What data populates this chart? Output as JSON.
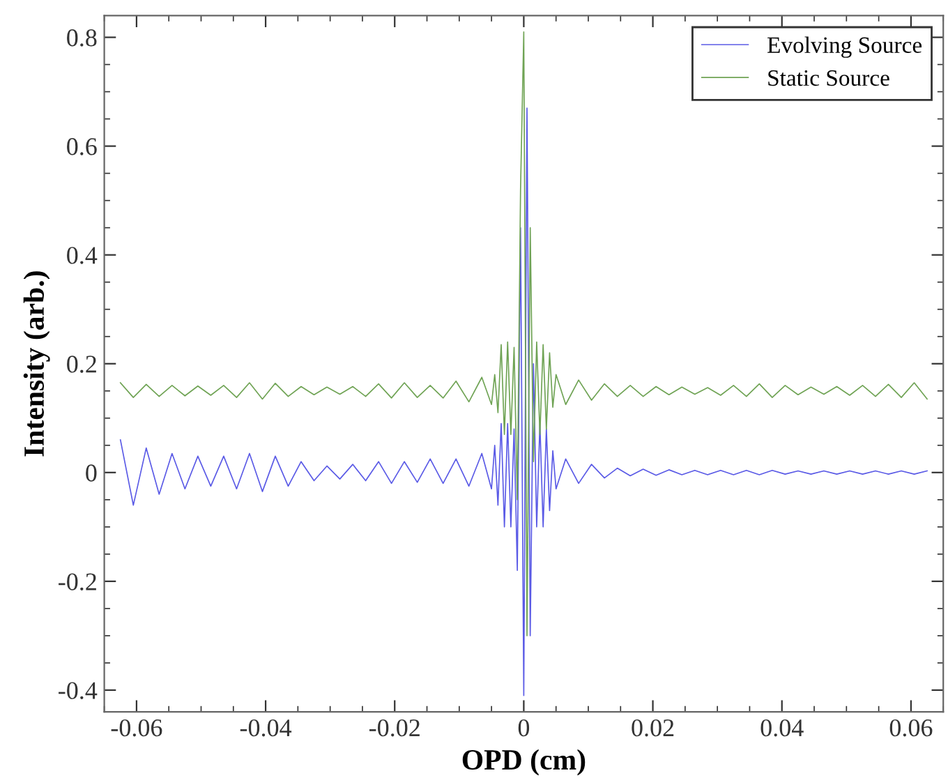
{
  "chart_data": {
    "type": "line",
    "xlabel": "OPD (cm)",
    "ylabel": "Intensity (arb.)",
    "xlim": [
      -0.065,
      0.065
    ],
    "ylim": [
      -0.44,
      0.84
    ],
    "xticks": [
      -0.06,
      -0.04,
      -0.02,
      0,
      0.02,
      0.04,
      0.06
    ],
    "yticks": [
      -0.4,
      -0.2,
      0,
      0.2,
      0.4,
      0.6,
      0.8
    ],
    "legend": "top right",
    "grid": false,
    "x": [
      -0.0625,
      -0.0605,
      -0.0585,
      -0.0565,
      -0.0545,
      -0.0525,
      -0.0505,
      -0.0485,
      -0.0465,
      -0.0445,
      -0.0425,
      -0.0405,
      -0.0385,
      -0.0365,
      -0.0345,
      -0.0325,
      -0.0305,
      -0.0285,
      -0.0265,
      -0.0245,
      -0.0225,
      -0.0205,
      -0.0185,
      -0.0165,
      -0.0145,
      -0.0125,
      -0.0105,
      -0.0085,
      -0.0065,
      -0.005,
      -0.0045,
      -0.004,
      -0.0035,
      -0.003,
      -0.0025,
      -0.002,
      -0.0015,
      -0.001,
      -0.0005,
      0,
      0.0005,
      0.001,
      0.0015,
      0.002,
      0.0025,
      0.003,
      0.0035,
      0.004,
      0.0045,
      0.005,
      0.0065,
      0.0085,
      0.0105,
      0.0125,
      0.0145,
      0.0165,
      0.0185,
      0.0205,
      0.0225,
      0.0245,
      0.0265,
      0.0285,
      0.0305,
      0.0325,
      0.0345,
      0.0365,
      0.0385,
      0.0405,
      0.0425,
      0.0445,
      0.0465,
      0.0485,
      0.0505,
      0.0525,
      0.0545,
      0.0565,
      0.0585,
      0.0605,
      0.0625
    ],
    "series": [
      {
        "name": "Evolving Source",
        "color": "#5a5ae6",
        "values": [
          0.06,
          -0.06,
          0.045,
          -0.04,
          0.035,
          -0.03,
          0.03,
          -0.025,
          0.03,
          -0.03,
          0.035,
          -0.035,
          0.03,
          -0.025,
          0.02,
          -0.015,
          0.012,
          -0.012,
          0.015,
          -0.015,
          0.02,
          -0.02,
          0.02,
          -0.018,
          0.025,
          -0.02,
          0.025,
          -0.025,
          0.035,
          -0.03,
          0.05,
          -0.06,
          0.09,
          -0.1,
          0.09,
          -0.1,
          0.08,
          -0.18,
          0.45,
          -0.41,
          0.67,
          -0.3,
          0.2,
          -0.1,
          0.09,
          -0.1,
          0.08,
          -0.07,
          0.04,
          -0.03,
          0.025,
          -0.02,
          0.015,
          -0.01,
          0.008,
          -0.006,
          0.006,
          -0.005,
          0.005,
          -0.004,
          0.004,
          -0.004,
          0.004,
          -0.004,
          0.004,
          -0.004,
          0.004,
          -0.003,
          0.003,
          -0.003,
          0.003,
          -0.003,
          0.003,
          -0.003,
          0.003,
          -0.003,
          0.003,
          -0.003,
          0.003
        ]
      },
      {
        "name": "Static Source",
        "color": "#6fa354",
        "values": [
          0.165,
          0.138,
          0.162,
          0.14,
          0.16,
          0.141,
          0.159,
          0.142,
          0.16,
          0.138,
          0.165,
          0.135,
          0.164,
          0.14,
          0.158,
          0.143,
          0.157,
          0.144,
          0.158,
          0.14,
          0.163,
          0.137,
          0.165,
          0.138,
          0.16,
          0.137,
          0.168,
          0.13,
          0.175,
          0.125,
          0.18,
          0.11,
          0.235,
          0.07,
          0.24,
          0.07,
          0.23,
          -0.05,
          0.52,
          0.81,
          -0.3,
          0.45,
          0.02,
          0.24,
          0.07,
          0.235,
          0.08,
          0.22,
          0.12,
          0.18,
          0.125,
          0.17,
          0.133,
          0.163,
          0.14,
          0.16,
          0.14,
          0.158,
          0.143,
          0.157,
          0.144,
          0.156,
          0.142,
          0.16,
          0.14,
          0.163,
          0.138,
          0.16,
          0.143,
          0.157,
          0.144,
          0.158,
          0.142,
          0.16,
          0.14,
          0.162,
          0.138,
          0.165,
          0.135
        ]
      }
    ]
  }
}
